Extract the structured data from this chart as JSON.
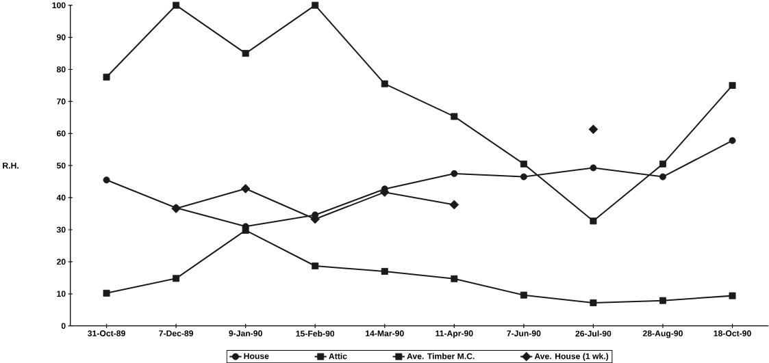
{
  "chart_data": {
    "type": "line",
    "ylabel": "R.H.",
    "categories": [
      "31-Oct-89",
      "7-Dec-89",
      "9-Jan-90",
      "15-Feb-90",
      "14-Mar-90",
      "11-Apr-90",
      "7-Jun-90",
      "26-Jul-90",
      "28-Aug-90",
      "18-Oct-90"
    ],
    "series": [
      {
        "name": "House",
        "color": "#1a1a1a",
        "marker": "circle",
        "values": [
          45.5,
          36.8,
          31,
          34.6,
          42.7,
          47.5,
          46.5,
          49.3,
          46.5,
          57.8
        ]
      },
      {
        "name": "Attic",
        "color": "#1a1a1a",
        "marker": "square",
        "values": [
          77.6,
          100,
          85,
          100,
          75.5,
          65.3,
          50.5,
          32.7,
          50.5,
          75
        ]
      },
      {
        "name": "Ave. Timber M.C.",
        "color": "#1a1a1a",
        "marker": "square",
        "values": [
          10.2,
          14.8,
          29.8,
          18.7,
          17,
          14.7,
          9.6,
          7.2,
          7.9,
          9.4
        ]
      },
      {
        "name": "Ave. House (1 wk.)",
        "color": "#1a1a1a",
        "marker": "diamond",
        "values": [
          null,
          36.6,
          42.8,
          33.3,
          41.7,
          37.8,
          null,
          61.3,
          null,
          null
        ]
      }
    ],
    "ylim": [
      0,
      100
    ],
    "yticks": [
      0,
      10,
      20,
      30,
      40,
      50,
      60,
      70,
      80,
      90,
      100
    ],
    "grid": false,
    "legend": "bottom",
    "line_style": "solid"
  }
}
